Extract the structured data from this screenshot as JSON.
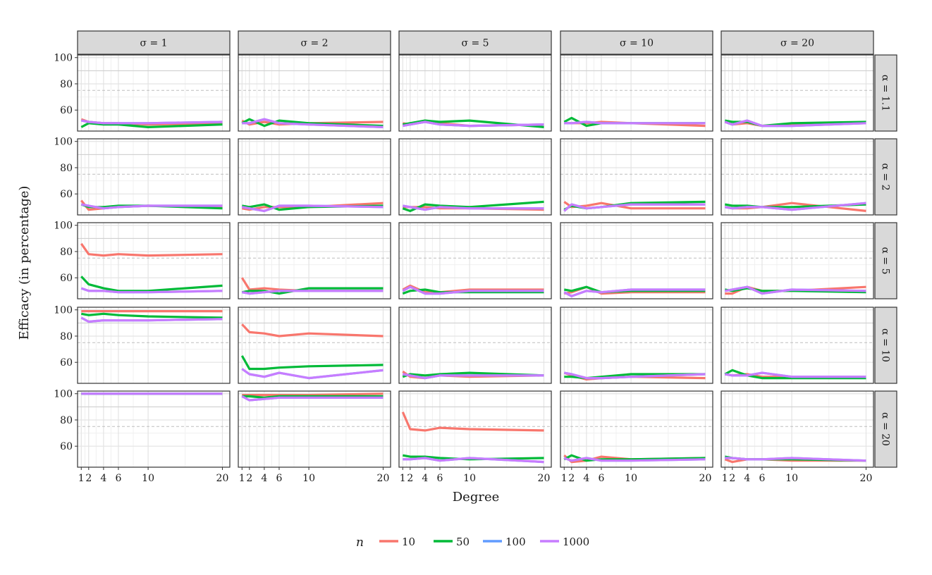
{
  "chart_data": {
    "type": "line",
    "xlabel": "Degree",
    "ylabel": "Efficacy (in percentage)",
    "x": [
      1,
      2,
      4,
      6,
      10,
      20
    ],
    "x_ticks": [
      1,
      2,
      4,
      6,
      10,
      20
    ],
    "x_tick_labels": [
      "1",
      "2",
      "4",
      "6",
      "10",
      "20"
    ],
    "y_ticks": [
      60,
      80,
      100
    ],
    "y_tick_labels": [
      "60",
      "80",
      "100"
    ],
    "xlim": [
      0.5,
      21
    ],
    "ylim": [
      44,
      102
    ],
    "ref_lines": [
      75,
      90
    ],
    "grid": true,
    "legend_position": "bottom",
    "legend_title": "n",
    "col_strips": [
      "σ = 1",
      "σ = 2",
      "σ = 5",
      "σ = 10",
      "σ = 20"
    ],
    "row_strips": [
      "α = 1.1",
      "α = 2",
      "α = 5",
      "α = 10",
      "α = 20"
    ],
    "series": [
      {
        "name": "10",
        "color": "#F8766D"
      },
      {
        "name": "50",
        "color": "#00BA38"
      },
      {
        "name": "100",
        "color": "#619CFF"
      },
      {
        "name": "1000",
        "color": "#C77CFF"
      }
    ],
    "panels": [
      [
        [
          [
            53,
            51,
            50,
            50,
            49,
            50
          ],
          [
            47,
            50,
            49,
            49,
            47,
            49
          ],
          [
            52,
            51,
            50,
            50,
            50,
            51
          ],
          [
            52,
            51,
            50,
            50,
            50,
            51
          ]
        ],
        [
          [
            52,
            49,
            51,
            49,
            50,
            51
          ],
          [
            50,
            53,
            48,
            52,
            50,
            48
          ],
          [
            50,
            50,
            53,
            50,
            49,
            47
          ],
          [
            50,
            50,
            53,
            50,
            49,
            47
          ]
        ],
        [
          [
            50,
            49,
            52,
            50,
            48,
            49
          ],
          [
            49,
            50,
            52,
            51,
            52,
            47
          ],
          [
            48,
            49,
            51,
            49,
            48,
            49
          ],
          [
            48,
            49,
            51,
            49,
            48,
            49
          ]
        ],
        [
          [
            50,
            50,
            50,
            51,
            50,
            48
          ],
          [
            51,
            54,
            48,
            50,
            50,
            50
          ],
          [
            50,
            50,
            51,
            50,
            50,
            50
          ],
          [
            50,
            50,
            51,
            50,
            50,
            50
          ]
        ],
        [
          [
            51,
            49,
            50,
            48,
            49,
            50
          ],
          [
            52,
            51,
            51,
            48,
            50,
            51
          ],
          [
            51,
            49,
            52,
            48,
            48,
            50
          ],
          [
            51,
            49,
            52,
            48,
            48,
            50
          ]
        ]
      ],
      [
        [
          [
            55,
            48,
            49,
            50,
            51,
            50
          ],
          [
            52,
            50,
            50,
            51,
            51,
            49
          ],
          [
            52,
            51,
            49,
            50,
            51,
            51
          ],
          [
            52,
            51,
            49,
            50,
            51,
            51
          ]
        ],
        [
          [
            49,
            48,
            50,
            50,
            50,
            53
          ],
          [
            51,
            50,
            52,
            48,
            50,
            51
          ],
          [
            50,
            49,
            47,
            51,
            51,
            50
          ],
          [
            50,
            49,
            47,
            51,
            51,
            50
          ]
        ],
        [
          [
            50,
            50,
            50,
            49,
            49,
            48
          ],
          [
            49,
            47,
            52,
            51,
            50,
            54
          ],
          [
            51,
            50,
            48,
            50,
            49,
            49
          ],
          [
            51,
            50,
            48,
            50,
            49,
            49
          ]
        ],
        [
          [
            54,
            50,
            51,
            53,
            49,
            49
          ],
          [
            48,
            51,
            49,
            50,
            53,
            54
          ],
          [
            47,
            52,
            49,
            50,
            52,
            52
          ],
          [
            47,
            52,
            49,
            50,
            52,
            52
          ]
        ],
        [
          [
            50,
            49,
            49,
            50,
            53,
            47
          ],
          [
            52,
            51,
            51,
            50,
            50,
            52
          ],
          [
            50,
            49,
            50,
            50,
            48,
            53
          ],
          [
            50,
            49,
            50,
            50,
            48,
            53
          ]
        ]
      ],
      [
        [
          [
            86,
            78,
            77,
            78,
            77,
            78
          ],
          [
            61,
            55,
            52,
            50,
            50,
            54
          ],
          [
            52,
            50,
            50,
            49,
            49,
            50
          ],
          [
            52,
            50,
            50,
            49,
            49,
            50
          ]
        ],
        [
          [
            60,
            51,
            52,
            51,
            50,
            50
          ],
          [
            49,
            50,
            50,
            48,
            52,
            52
          ],
          [
            49,
            48,
            49,
            50,
            50,
            50
          ],
          [
            49,
            48,
            49,
            50,
            50,
            50
          ]
        ],
        [
          [
            51,
            54,
            49,
            49,
            51,
            51
          ],
          [
            48,
            50,
            51,
            49,
            49,
            49
          ],
          [
            50,
            53,
            48,
            48,
            50,
            50
          ],
          [
            50,
            53,
            48,
            48,
            50,
            50
          ]
        ],
        [
          [
            48,
            49,
            53,
            48,
            49,
            49
          ],
          [
            51,
            50,
            53,
            49,
            50,
            50
          ],
          [
            49,
            46,
            50,
            49,
            51,
            51
          ],
          [
            49,
            46,
            50,
            49,
            51,
            51
          ]
        ],
        [
          [
            48,
            48,
            53,
            50,
            50,
            53
          ],
          [
            51,
            50,
            52,
            50,
            50,
            49
          ],
          [
            50,
            51,
            53,
            48,
            51,
            50
          ],
          [
            50,
            51,
            53,
            48,
            51,
            50
          ]
        ]
      ],
      [
        [
          [
            99,
            99,
            99,
            99,
            99,
            99
          ],
          [
            97,
            96,
            97,
            96,
            95,
            94
          ],
          [
            94,
            91,
            92,
            92,
            92,
            93
          ],
          [
            94,
            91,
            92,
            92,
            92,
            93
          ]
        ],
        [
          [
            89,
            83,
            82,
            80,
            82,
            80
          ],
          [
            65,
            55,
            55,
            56,
            57,
            58
          ],
          [
            55,
            51,
            49,
            52,
            48,
            54
          ],
          [
            55,
            51,
            49,
            52,
            48,
            54
          ]
        ],
        [
          [
            53,
            49,
            48,
            50,
            49,
            50
          ],
          [
            49,
            51,
            50,
            51,
            52,
            50
          ],
          [
            51,
            50,
            48,
            50,
            50,
            50
          ],
          [
            51,
            50,
            48,
            50,
            50,
            50
          ]
        ],
        [
          [
            52,
            50,
            47,
            48,
            49,
            48
          ],
          [
            49,
            49,
            48,
            49,
            51,
            51
          ],
          [
            52,
            51,
            48,
            48,
            49,
            51
          ],
          [
            52,
            51,
            48,
            48,
            49,
            51
          ]
        ],
        [
          [
            51,
            50,
            51,
            49,
            49,
            49
          ],
          [
            51,
            54,
            50,
            48,
            48,
            48
          ],
          [
            51,
            50,
            50,
            52,
            49,
            49
          ],
          [
            51,
            50,
            50,
            52,
            49,
            49
          ]
        ]
      ],
      [
        [
          [
            100,
            100,
            100,
            100,
            100,
            100
          ],
          [
            100,
            100,
            100,
            100,
            100,
            100
          ],
          [
            100,
            100,
            100,
            100,
            100,
            100
          ],
          [
            100,
            100,
            100,
            100,
            100,
            100
          ]
        ],
        [
          [
            99,
            99,
            99,
            99,
            99,
            100
          ],
          [
            98,
            98,
            97,
            98,
            98,
            98
          ],
          [
            98,
            95,
            96,
            97,
            97,
            97
          ],
          [
            98,
            95,
            96,
            97,
            97,
            97
          ]
        ],
        [
          [
            86,
            73,
            72,
            74,
            73,
            72
          ],
          [
            53,
            52,
            52,
            51,
            50,
            51
          ],
          [
            50,
            50,
            51,
            49,
            51,
            48
          ],
          [
            50,
            50,
            51,
            49,
            51,
            48
          ]
        ],
        [
          [
            53,
            48,
            49,
            52,
            50,
            51
          ],
          [
            50,
            53,
            49,
            50,
            50,
            51
          ],
          [
            51,
            49,
            51,
            49,
            49,
            50
          ],
          [
            51,
            49,
            51,
            49,
            49,
            50
          ]
        ],
        [
          [
            50,
            48,
            50,
            50,
            49,
            49
          ],
          [
            52,
            51,
            50,
            50,
            50,
            49
          ],
          [
            51,
            51,
            50,
            50,
            51,
            49
          ],
          [
            51,
            51,
            50,
            50,
            51,
            49
          ]
        ]
      ]
    ]
  }
}
